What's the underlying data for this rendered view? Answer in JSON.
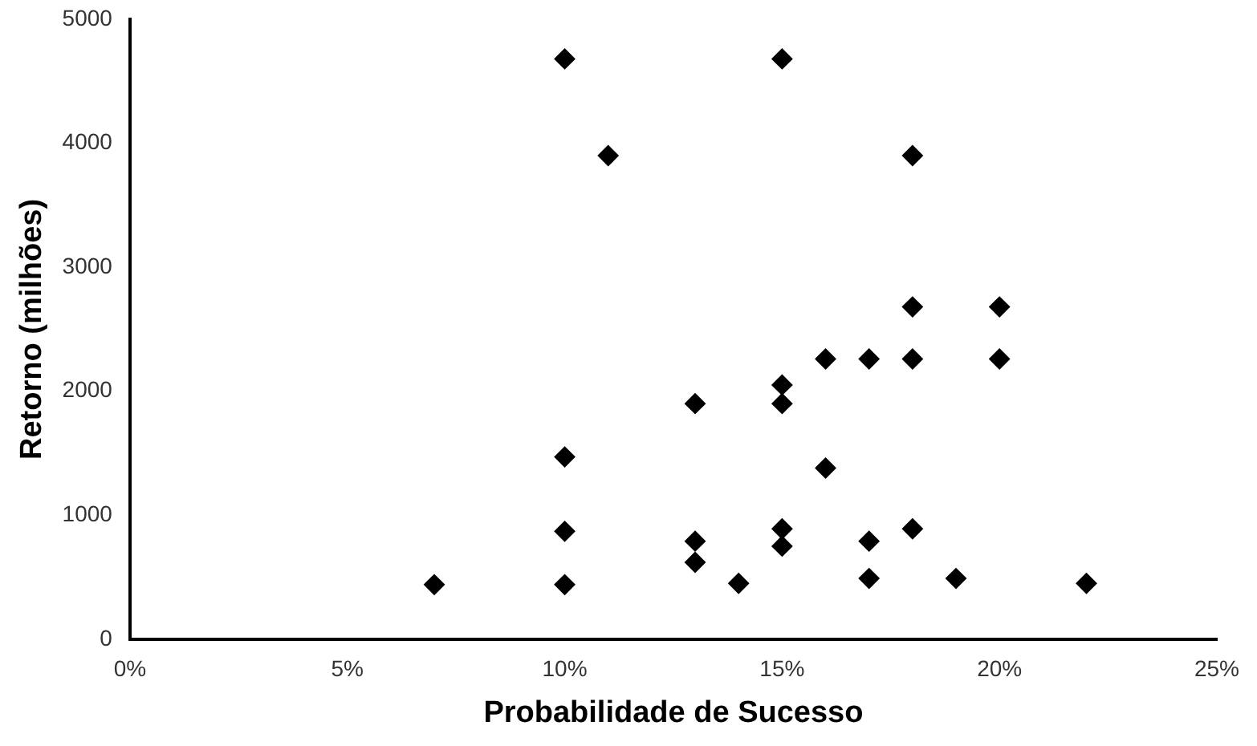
{
  "chart_data": {
    "type": "scatter",
    "xlabel": "Probabilidade de Sucesso",
    "ylabel": "Retorno (milhões)",
    "x": [
      7,
      10,
      10,
      10,
      10,
      11,
      13,
      13,
      13,
      14,
      15,
      15,
      15,
      15,
      15,
      16,
      16,
      17,
      17,
      17,
      18,
      18,
      18,
      18,
      19,
      20,
      20,
      22
    ],
    "series": [
      {
        "color": "#000000",
        "values": [
          440,
          4680,
          1470,
          870,
          440,
          3900,
          1900,
          790,
          620,
          450,
          4680,
          2050,
          1900,
          890,
          750,
          2260,
          1380,
          2260,
          790,
          490,
          3900,
          2680,
          2260,
          890,
          490,
          2680,
          2260,
          450
        ]
      }
    ],
    "xlim": [
      0,
      25
    ],
    "xticks": [
      {
        "value": 0,
        "label": "0%"
      },
      {
        "value": 5,
        "label": "5%"
      },
      {
        "value": 10,
        "label": "10%"
      },
      {
        "value": 15,
        "label": "15%"
      },
      {
        "value": 20,
        "label": "20%"
      },
      {
        "value": 25,
        "label": "25%"
      }
    ],
    "ylim": [
      0,
      5000
    ],
    "yticks": [
      0,
      1000,
      2000,
      3000,
      4000,
      5000
    ],
    "grid": false,
    "legend": false,
    "marker": "diamond"
  }
}
